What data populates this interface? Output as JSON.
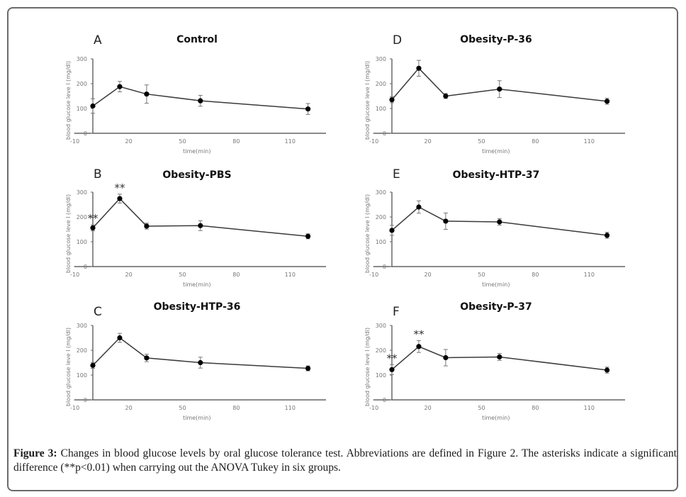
{
  "figure": {
    "caption_label": "Figure 3:",
    "caption_text": " Changes in blood glucose levels by oral glucose tolerance test. Abbreviations are defined in Figure 2. The asterisks indicate a significant difference (**p<0.01) when carrying out the ANOVA Tukey in six groups."
  },
  "chart_data": [
    {
      "type": "line",
      "panel": "A",
      "title": "Control",
      "xlabel": "time(min)",
      "ylabel": "blood glucose leve l (mg/dl)",
      "xlim": [
        -10,
        120
      ],
      "ylim": [
        0,
        300
      ],
      "xticks": [
        "-10",
        "20",
        "50",
        "80",
        "110"
      ],
      "xtick_values": [
        -10,
        20,
        50,
        80,
        110
      ],
      "yticks": [
        "0",
        "100",
        "200",
        "300"
      ],
      "ytick_values": [
        0,
        100,
        200,
        300
      ],
      "x": [
        0,
        15,
        30,
        60,
        120
      ],
      "y": [
        110,
        188,
        158,
        131,
        98
      ],
      "error": [
        29,
        21,
        37,
        22,
        22
      ],
      "significance": []
    },
    {
      "type": "line",
      "panel": "B",
      "title": "Obesity-PBS",
      "xlabel": "time(min)",
      "ylabel": "blood glucose leve l (mg/dl)",
      "xlim": [
        -10,
        120
      ],
      "ylim": [
        0,
        300
      ],
      "xticks": [
        "-10",
        "20",
        "50",
        "80",
        "110"
      ],
      "xtick_values": [
        -10,
        20,
        50,
        80,
        110
      ],
      "yticks": [
        "0",
        "100",
        "200",
        "300"
      ],
      "ytick_values": [
        0,
        100,
        200,
        300
      ],
      "x": [
        0,
        15,
        30,
        60,
        120
      ],
      "y": [
        156,
        274,
        163,
        165,
        122
      ],
      "error": [
        12,
        18,
        12,
        20,
        10
      ],
      "significance": [
        {
          "x": 0,
          "label": "**"
        },
        {
          "x": 15,
          "label": "**"
        }
      ]
    },
    {
      "type": "line",
      "panel": "C",
      "title": "Obesity-HTP-36",
      "xlabel": "time(min)",
      "ylabel": "blood glucose leve l (mg/dl)",
      "xlim": [
        -10,
        120
      ],
      "ylim": [
        0,
        300
      ],
      "xticks": [
        "-10",
        "20",
        "50",
        "80",
        "110"
      ],
      "xtick_values": [
        -10,
        20,
        50,
        80,
        110
      ],
      "yticks": [
        "0",
        "100",
        "200",
        "300"
      ],
      "ytick_values": [
        0,
        100,
        200,
        300
      ],
      "x": [
        0,
        15,
        30,
        60,
        120
      ],
      "y": [
        139,
        250,
        169,
        150,
        127
      ],
      "error": [
        12,
        18,
        15,
        22,
        10
      ],
      "significance": []
    },
    {
      "type": "line",
      "panel": "D",
      "title": "Obesity-P-36",
      "xlabel": "time(min)",
      "ylabel": "blood glucose leve l (mg/dl)",
      "xlim": [
        -10,
        120
      ],
      "ylim": [
        0,
        300
      ],
      "xticks": [
        "-10",
        "20",
        "50",
        "80",
        "110"
      ],
      "xtick_values": [
        -10,
        20,
        50,
        80,
        110
      ],
      "yticks": [
        "0",
        "100",
        "200",
        "300"
      ],
      "ytick_values": [
        0,
        100,
        200,
        300
      ],
      "x": [
        0,
        15,
        30,
        60,
        120
      ],
      "y": [
        135,
        262,
        150,
        178,
        129
      ],
      "error": [
        12,
        32,
        10,
        34,
        12
      ],
      "significance": []
    },
    {
      "type": "line",
      "panel": "E",
      "title": "Obesity-HTP-37",
      "xlabel": "time(min)",
      "ylabel": "blood glucose leve l (mg/dl)",
      "xlim": [
        -10,
        120
      ],
      "ylim": [
        0,
        300
      ],
      "xticks": [
        "-10",
        "20",
        "50",
        "80",
        "110"
      ],
      "xtick_values": [
        -10,
        20,
        50,
        80,
        110
      ],
      "yticks": [
        "0",
        "100",
        "200",
        "300"
      ],
      "ytick_values": [
        0,
        100,
        200,
        300
      ],
      "x": [
        0,
        15,
        30,
        60,
        120
      ],
      "y": [
        146,
        240,
        183,
        180,
        126
      ],
      "error": [
        20,
        25,
        33,
        13,
        12
      ],
      "significance": []
    },
    {
      "type": "line",
      "panel": "F",
      "title": "Obesity-P-37",
      "xlabel": "time(min)",
      "ylabel": "blood glucose leve l (mg/dl)",
      "xlim": [
        -10,
        120
      ],
      "ylim": [
        0,
        300
      ],
      "xticks": [
        "-10",
        "20",
        "50",
        "80",
        "110"
      ],
      "xtick_values": [
        -10,
        20,
        50,
        80,
        110
      ],
      "yticks": [
        "0",
        "100",
        "200",
        "300"
      ],
      "ytick_values": [
        0,
        100,
        200,
        300
      ],
      "x": [
        0,
        15,
        30,
        60,
        120
      ],
      "y": [
        122,
        215,
        170,
        173,
        120
      ],
      "error": [
        20,
        24,
        33,
        14,
        12
      ],
      "significance": [
        {
          "x": 0,
          "label": "**"
        },
        {
          "x": 15,
          "label": "**"
        }
      ]
    }
  ]
}
